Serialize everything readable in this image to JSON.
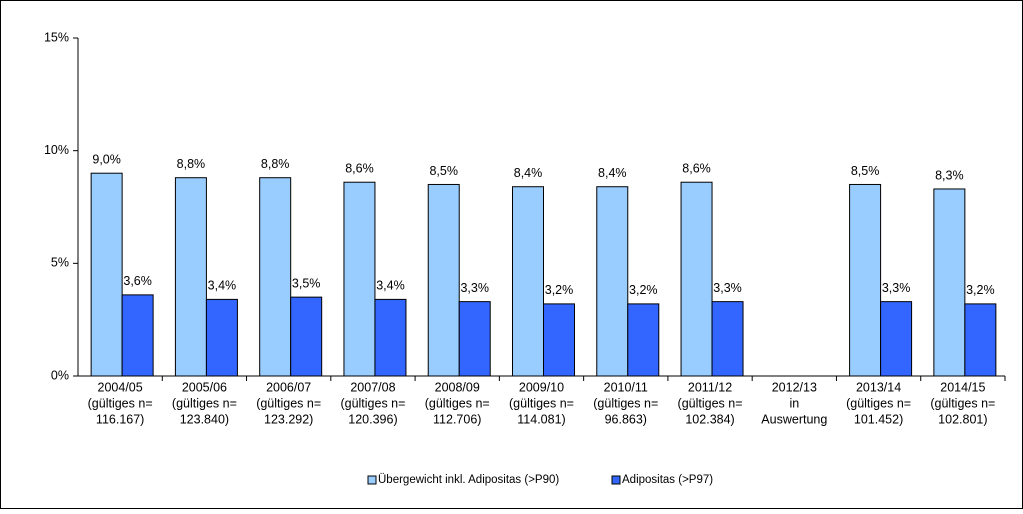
{
  "chart_data": {
    "type": "bar",
    "categories": [
      [
        "2004/05",
        "(gültiges n=",
        "116.167)"
      ],
      [
        "2005/06",
        "(gültiges n=",
        "123.840)"
      ],
      [
        "2006/07",
        "(gültiges n=",
        "123.292)"
      ],
      [
        "2007/08",
        "(gültiges n=",
        "120.396)"
      ],
      [
        "2008/09",
        "(gültiges n=",
        "112.706)"
      ],
      [
        "2009/10",
        "(gültiges n=",
        "114.081)"
      ],
      [
        "2010/11",
        "(gültiges n=",
        "96.863)"
      ],
      [
        "2011/12",
        "(gültiges n=",
        "102.384)"
      ],
      [
        "2012/13",
        "in",
        "Auswertung"
      ],
      [
        "2013/14",
        "(gültiges n=",
        "101.452)"
      ],
      [
        "2014/15",
        "(gültiges n=",
        "102.801)"
      ]
    ],
    "series": [
      {
        "name": "Übergewicht inkl. Adipositas (>P90)",
        "color": "#99ccff",
        "values": [
          9.0,
          8.8,
          8.8,
          8.6,
          8.5,
          8.4,
          8.4,
          8.6,
          null,
          8.5,
          8.3
        ],
        "value_labels": [
          "9,0%",
          "8,8%",
          "8,8%",
          "8,6%",
          "8,5%",
          "8,4%",
          "8,4%",
          "8,6%",
          null,
          "8,5%",
          "8,3%"
        ]
      },
      {
        "name": "Adipositas (>P97)",
        "color": "#3366ff",
        "values": [
          3.6,
          3.4,
          3.5,
          3.4,
          3.3,
          3.2,
          3.2,
          3.3,
          null,
          3.3,
          3.2
        ],
        "value_labels": [
          "3,6%",
          "3,4%",
          "3,5%",
          "3,4%",
          "3,3%",
          "3,2%",
          "3,2%",
          "3,3%",
          null,
          "3,3%",
          "3,2%"
        ]
      }
    ],
    "ylim": [
      0,
      15
    ],
    "yticks": [
      {
        "value": 0,
        "label": "0%"
      },
      {
        "value": 5,
        "label": "5%"
      },
      {
        "value": 10,
        "label": "10%"
      },
      {
        "value": 15,
        "label": "15%"
      }
    ],
    "legend": "bottom"
  }
}
